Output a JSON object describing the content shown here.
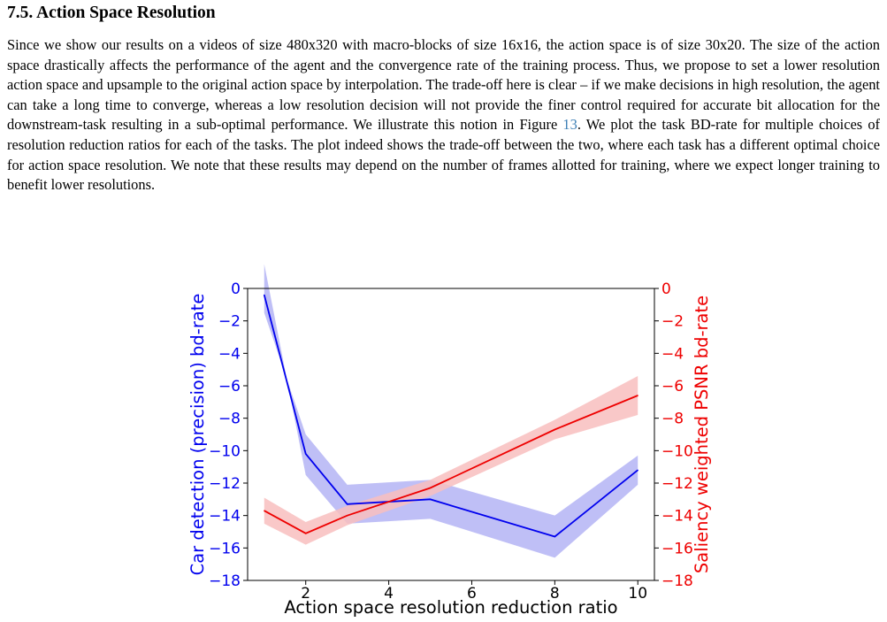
{
  "section": {
    "number": "7.5.",
    "title": "Action Space Resolution"
  },
  "paragraph": {
    "before_ref": "Since we show our results on a videos of size 480x320 with macro-blocks of size 16x16, the action space is of size 30x20. The size of the action space drastically affects the performance of the agent and the convergence rate of the training process. Thus, we propose to set a lower resolution action space and upsample to the original action space by interpolation. The trade-off here is clear – if we make decisions in high resolution, the agent can take a long time to converge, whereas a low resolution decision will not provide the finer control required for accurate bit allocation for the downstream-task resulting in a sub-optimal performance. We illustrate this notion in Figure ",
    "figure_ref": "13",
    "after_ref": ". We plot the task BD-rate for multiple choices of resolution reduction ratios for each of the tasks. The plot indeed shows the trade-off between the two, where each task has a different optimal choice for action space resolution. We note that these results may depend on the number of frames allotted for training, where we expect longer training to benefit lower resolutions."
  },
  "chart_data": {
    "type": "line",
    "xlabel": "Action space resolution reduction ratio",
    "ylabel_left": "Car detection (precision) bd-rate",
    "ylabel_right": "Saliency weighted PSNR bd-rate",
    "xlim": [
      0.6,
      10.4
    ],
    "ylim_left": [
      -18,
      0
    ],
    "ylim_right": [
      -18,
      0
    ],
    "x_ticks": [
      2,
      4,
      6,
      8,
      10
    ],
    "y_ticks_left": [
      0,
      -2,
      -4,
      -6,
      -8,
      -10,
      -12,
      -14,
      -16,
      -18
    ],
    "y_ticks_right": [
      0,
      -2,
      -4,
      -6,
      -8,
      -10,
      -12,
      -14,
      -16,
      -18
    ],
    "grid": false,
    "series": [
      {
        "axis": "left",
        "color": "#0000ee",
        "band_color": "#b4b4f5",
        "x": [
          1,
          2,
          3,
          5,
          8,
          10
        ],
        "y": [
          -0.4,
          -10.2,
          -13.3,
          -13.0,
          -15.3,
          -11.2
        ],
        "y_lower": [
          1.5,
          -11.5,
          -14.5,
          -14.2,
          -16.6,
          -12.1
        ],
        "y_upper": [
          -1.5,
          -9.0,
          -12.1,
          -11.8,
          -14.0,
          -10.3
        ]
      },
      {
        "axis": "right",
        "color": "#ee0000",
        "band_color": "#f8bebe",
        "x": [
          1,
          2,
          3,
          5,
          8,
          10
        ],
        "y": [
          -13.7,
          -15.1,
          -14.0,
          -12.3,
          -8.7,
          -6.6
        ],
        "y_lower": [
          -14.5,
          -15.8,
          -14.6,
          -12.8,
          -9.3,
          -7.8
        ],
        "y_upper": [
          -12.9,
          -14.4,
          -13.4,
          -11.8,
          -8.1,
          -5.4
        ]
      }
    ]
  }
}
